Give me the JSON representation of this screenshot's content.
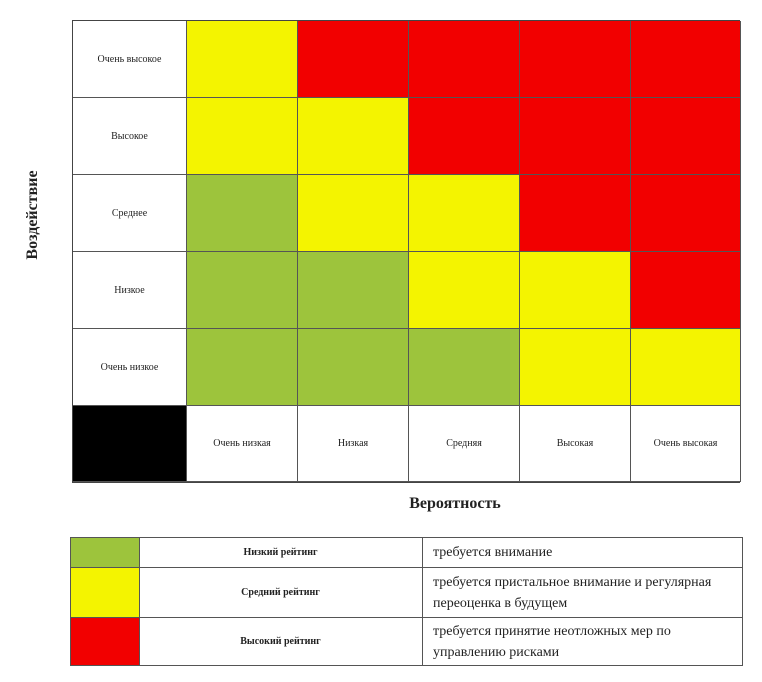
{
  "chart_data": {
    "type": "heatmap",
    "ylabel": "Воздействие",
    "xlabel": "Вероятность",
    "y_categories": [
      "Очень высокое",
      "Высокое",
      "Среднее",
      "Низкое",
      "Очень низкое"
    ],
    "x_categories": [
      "Очень низкая",
      "Низкая",
      "Средняя",
      "Высокая",
      "Очень высокая"
    ],
    "cells": [
      [
        "medium",
        "high",
        "high",
        "high",
        "high"
      ],
      [
        "medium",
        "medium",
        "high",
        "high",
        "high"
      ],
      [
        "low",
        "medium",
        "medium",
        "high",
        "high"
      ],
      [
        "low",
        "low",
        "medium",
        "medium",
        "high"
      ],
      [
        "low",
        "low",
        "low",
        "medium",
        "medium"
      ]
    ],
    "colors": {
      "low": "#9dc43c",
      "medium": "#f4f400",
      "high": "#f20000",
      "corner": "#000000"
    }
  },
  "legend": [
    {
      "level": "low",
      "name": "Низкий рейтинг",
      "description": "требуется внимание"
    },
    {
      "level": "medium",
      "name": "Средний рейтинг",
      "description": "требуется пристальное внимание и регулярная переоценка в будущем"
    },
    {
      "level": "high",
      "name": "Высокий рейтинг",
      "description": "требуется принятие неотложных мер по управлению рисками"
    }
  ]
}
